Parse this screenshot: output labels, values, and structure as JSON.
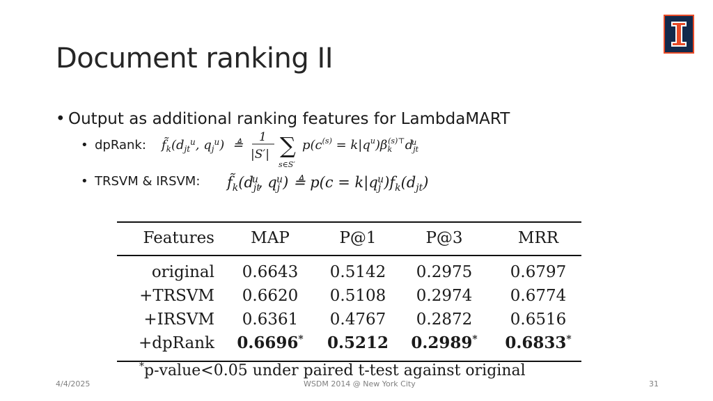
{
  "slide": {
    "title": "Document ranking II",
    "bullet": "Output as additional ranking features for LambdaMART",
    "subbullets": [
      {
        "label": "dpRank:"
      },
      {
        "label": "TRSVM & IRSVM:"
      }
    ]
  },
  "table": {
    "headers": [
      "Features",
      "MAP",
      "P@1",
      "P@3",
      "MRR"
    ],
    "rows": [
      [
        "original",
        "0.6643",
        "0.5142",
        "0.2975",
        "0.6797"
      ],
      [
        "+TRSVM",
        "0.6620",
        "0.5108",
        "0.2974",
        "0.6774"
      ],
      [
        "+IRSVM",
        "0.6361",
        "0.4767",
        "0.2872",
        "0.6516"
      ],
      [
        "+dpRank",
        "0.6696",
        "0.5212",
        "0.2989",
        "0.6833"
      ]
    ],
    "footnote": "p-value<0.05 under paired t-test against original"
  },
  "footer": {
    "date": "4/4/2025",
    "venue": "WSDM 2014 @ New York City",
    "page": "31"
  },
  "colors": {
    "logo_blue": "#13294b",
    "logo_orange": "#e84a27"
  },
  "icons": {
    "logo": "university-block-i-logo"
  }
}
